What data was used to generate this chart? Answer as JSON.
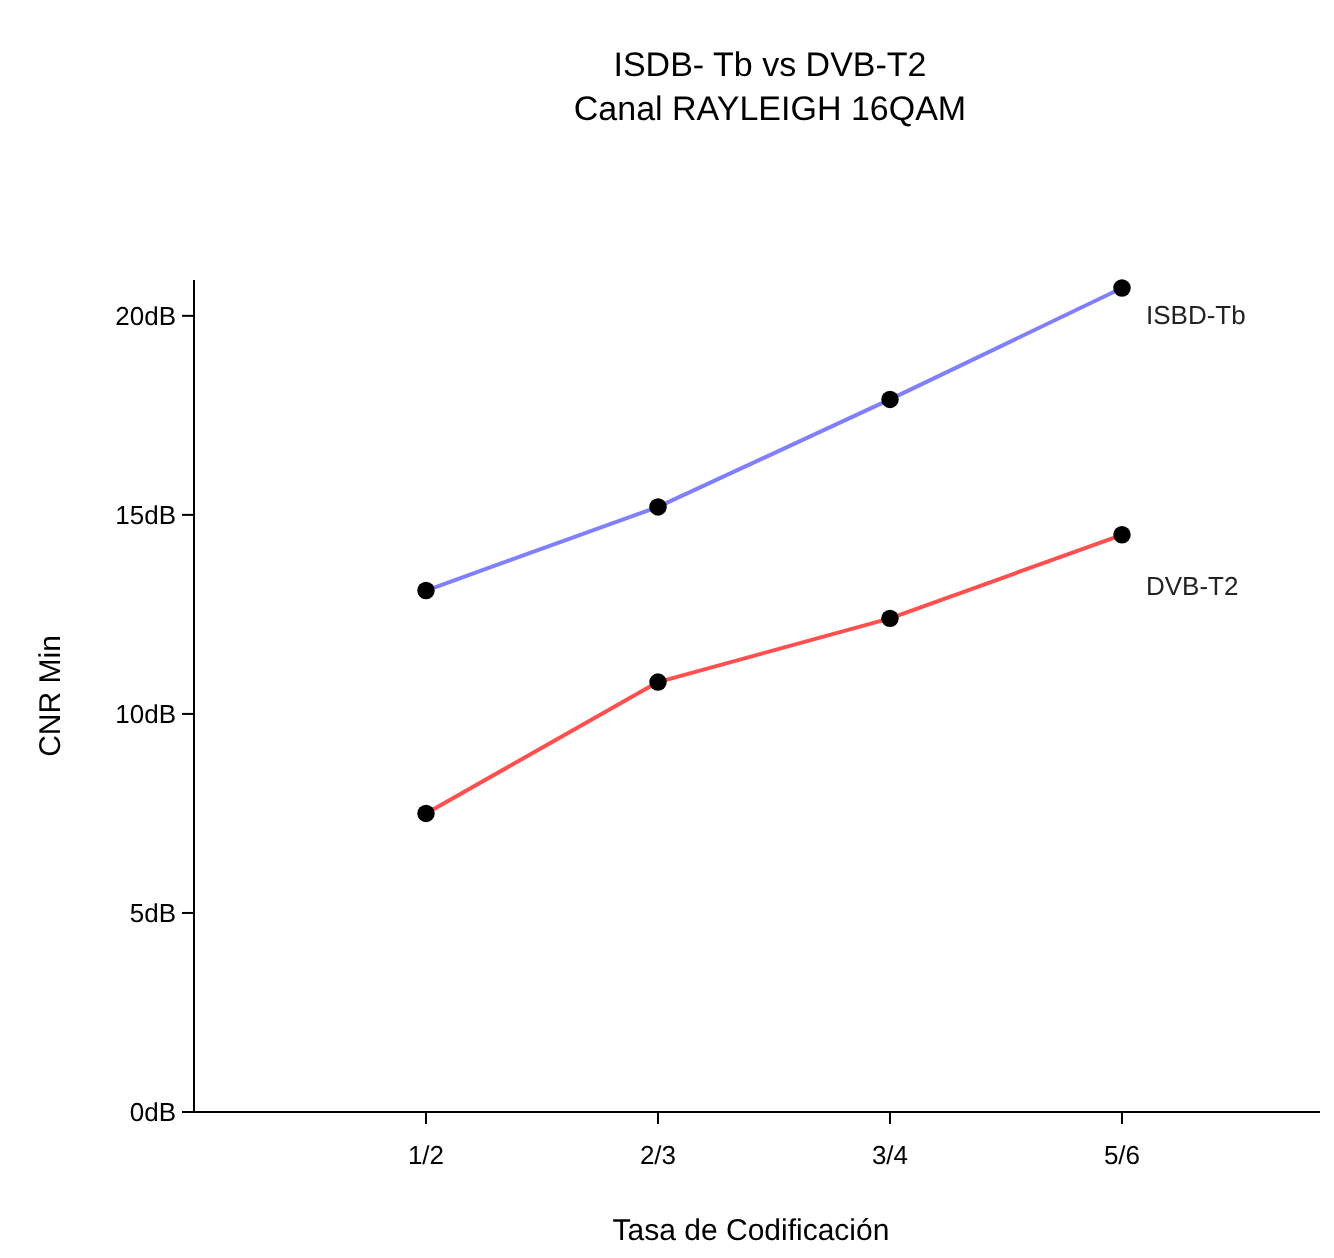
{
  "chart_data": {
    "type": "line",
    "title": "ISDB- Tb vs DVB-T2",
    "subtitle": "Canal RAYLEIGH 16QAM",
    "xlabel": "Tasa de Codificación",
    "ylabel": "CNR Min",
    "categories": [
      "1/2",
      "2/3",
      "3/4",
      "5/6"
    ],
    "series": [
      {
        "name": "ISBD-Tb",
        "color": "#8080ff",
        "values": [
          13.1,
          15.2,
          17.9,
          20.7
        ]
      },
      {
        "name": "DVB-T2",
        "color": "#ff5050",
        "values": [
          7.5,
          10.8,
          12.4,
          14.5
        ]
      }
    ],
    "ylim": [
      0,
      20.9
    ],
    "yticks": [
      {
        "value": 0,
        "label": "0dB"
      },
      {
        "value": 5,
        "label": "5dB"
      },
      {
        "value": 10,
        "label": "10dB"
      },
      {
        "value": 15,
        "label": "15dB"
      },
      {
        "value": 20,
        "label": "20dB"
      }
    ],
    "marker": "circle",
    "grid": false,
    "legend": false
  }
}
